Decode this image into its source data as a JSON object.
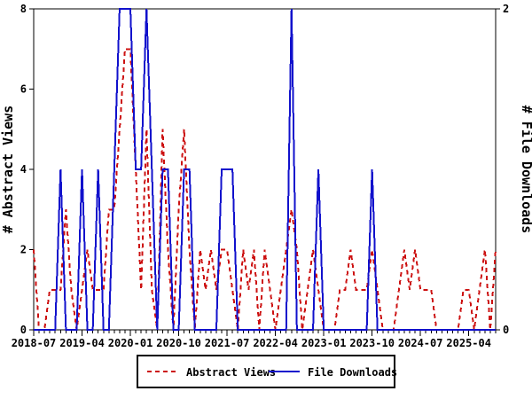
{
  "chart_data": {
    "type": "line",
    "title": "",
    "x": [
      "2018-07",
      "2018-08",
      "2018-09",
      "2018-10",
      "2018-11",
      "2018-12",
      "2019-01",
      "2019-02",
      "2019-03",
      "2019-04",
      "2019-05",
      "2019-06",
      "2019-07",
      "2019-08",
      "2019-09",
      "2019-10",
      "2019-11",
      "2019-12",
      "2020-01",
      "2020-02",
      "2020-03",
      "2020-04",
      "2020-05",
      "2020-06",
      "2020-07",
      "2020-08",
      "2020-09",
      "2020-10",
      "2020-11",
      "2020-12",
      "2021-01",
      "2021-02",
      "2021-03",
      "2021-04",
      "2021-05",
      "2021-06",
      "2021-07",
      "2021-08",
      "2021-09",
      "2021-10",
      "2021-11",
      "2021-12",
      "2022-01",
      "2022-02",
      "2022-03",
      "2022-04",
      "2022-05",
      "2022-06",
      "2022-07",
      "2022-08",
      "2022-09",
      "2022-10",
      "2022-11",
      "2022-12",
      "2023-01",
      "2023-02",
      "2023-03",
      "2023-04",
      "2023-05",
      "2023-06",
      "2023-07",
      "2023-08",
      "2023-09",
      "2023-10",
      "2023-11",
      "2023-12",
      "2024-01",
      "2024-02",
      "2024-03",
      "2024-04",
      "2024-05",
      "2024-06",
      "2024-07",
      "2024-08",
      "2024-09",
      "2024-10",
      "2024-11",
      "2024-12",
      "2025-01",
      "2025-02",
      "2025-03",
      "2025-04",
      "2025-05",
      "2025-06",
      "2025-07",
      "2025-08",
      "2025-09"
    ],
    "x_tick_label_every": 9,
    "x_tick_labels": [
      "2018-07",
      "2019-04",
      "2020-01",
      "2020-10",
      "2021-07",
      "2022-04",
      "2023-01",
      "2023-10",
      "2024-07",
      "2025-04"
    ],
    "series": [
      {
        "name": "Abstract Views",
        "axis": "left",
        "color": "#cc1111",
        "dashed": true,
        "values": [
          2,
          0,
          0,
          1,
          1,
          1,
          3,
          1,
          0,
          1,
          2,
          1,
          1,
          1,
          3,
          3,
          5,
          7,
          7,
          4,
          1,
          5,
          1,
          0,
          5,
          2,
          0,
          3,
          5,
          2,
          0,
          2,
          1,
          2,
          1,
          2,
          2,
          1,
          0,
          2,
          1,
          2,
          0,
          2,
          1,
          0,
          1,
          2,
          3,
          2,
          0,
          1,
          2,
          1,
          0,
          0,
          0,
          1,
          1,
          2,
          1,
          1,
          1,
          2,
          1,
          0,
          0,
          0,
          1,
          2,
          1,
          2,
          1,
          1,
          1,
          0,
          0,
          0,
          0,
          0,
          1,
          1,
          0,
          1,
          2,
          0,
          2
        ]
      },
      {
        "name": "File Downloads",
        "axis": "right",
        "color": "#1111cc",
        "dashed": false,
        "values": [
          0,
          0,
          0,
          0,
          0,
          1,
          0,
          0,
          0,
          1,
          0,
          0,
          1,
          0,
          0,
          1,
          2,
          2,
          2,
          1,
          1,
          2,
          1,
          0,
          1,
          1,
          0,
          0,
          1,
          1,
          0,
          0,
          0,
          0,
          0,
          1,
          1,
          1,
          0,
          0,
          0,
          0,
          0,
          0,
          0,
          0,
          0,
          0,
          2,
          0,
          0,
          0,
          0,
          1,
          0,
          0,
          0,
          0,
          0,
          0,
          0,
          0,
          0,
          1,
          0,
          0,
          0,
          0,
          0,
          0,
          0,
          0,
          0,
          0,
          0,
          0,
          0,
          0,
          0,
          0,
          0,
          0,
          0,
          0,
          0,
          0,
          0
        ]
      }
    ],
    "y_left": {
      "label": "# Abstract Views",
      "lim": [
        0,
        8
      ],
      "ticks": [
        0,
        2,
        4,
        6,
        8
      ]
    },
    "y_right": {
      "label": "# File Downloads",
      "lim": [
        0,
        2
      ],
      "ticks": [
        0,
        2
      ]
    },
    "grid": false,
    "legend_position": "bottom-center",
    "background": "#ffffff",
    "frame_color": "#000000"
  },
  "legend": {
    "items": [
      {
        "label": "Abstract Views",
        "color": "#cc1111",
        "dashed": true
      },
      {
        "label": "File Downloads",
        "color": "#1111cc",
        "dashed": false
      }
    ]
  }
}
